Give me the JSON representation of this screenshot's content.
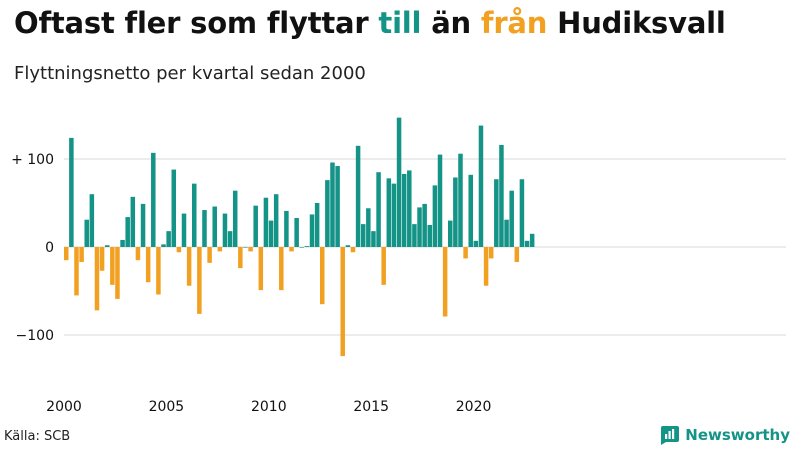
{
  "header": {
    "title_part1": "Oftast fler som flyttar ",
    "title_in": "till",
    "title_part2": " än ",
    "title_out": "från",
    "title_part3": " Hudiksvall",
    "subtitle": "Flyttningsnetto per kvartal sedan 2000"
  },
  "footer": {
    "source": "Källa: SCB",
    "brand": "Newsworthy",
    "brand_icon": "bar-chart-logo-icon"
  },
  "colors": {
    "positive": "#149387",
    "negative": "#f2a021",
    "grid": "#d9d9d9",
    "text": "#111111"
  },
  "chart_data": {
    "type": "bar",
    "title": "Oftast fler som flyttar till än från Hudiksvall",
    "subtitle": "Flyttningsnetto per kvartal sedan 2000",
    "xlabel": "",
    "ylabel": "",
    "ylim": [
      -155,
      155
    ],
    "grid": true,
    "y_ticks": [
      {
        "value": 100,
        "label": "+ 100"
      },
      {
        "value": 0,
        "label": "0"
      },
      {
        "value": -100,
        "label": "−100"
      }
    ],
    "x_ticks": [
      {
        "value": 2000,
        "label": "2000"
      },
      {
        "value": 2005,
        "label": "2005"
      },
      {
        "value": 2010,
        "label": "2010"
      },
      {
        "value": 2015,
        "label": "2015"
      },
      {
        "value": 2020,
        "label": "2020"
      }
    ],
    "x_start": 2000,
    "periods_per_year": 4,
    "values": [
      -15,
      124,
      -55,
      -17,
      31,
      60,
      -72,
      -27,
      2,
      -43,
      -59,
      8,
      34,
      57,
      -15,
      49,
      -40,
      107,
      -54,
      3,
      18,
      88,
      -6,
      38,
      -44,
      72,
      -76,
      42,
      -18,
      46,
      -5,
      38,
      18,
      64,
      -24,
      0,
      -5,
      47,
      -49,
      56,
      30,
      60,
      -49,
      41,
      -5,
      33,
      0,
      1,
      37,
      50,
      -65,
      76,
      96,
      92,
      -124,
      2,
      -6,
      115,
      26,
      44,
      18,
      85,
      -43,
      78,
      72,
      147,
      83,
      87,
      26,
      45,
      49,
      25,
      70,
      105,
      -79,
      30,
      79,
      106,
      -13,
      82,
      7,
      138,
      -44,
      -13,
      77,
      116,
      31,
      64,
      -17,
      77,
      7,
      15
    ]
  }
}
